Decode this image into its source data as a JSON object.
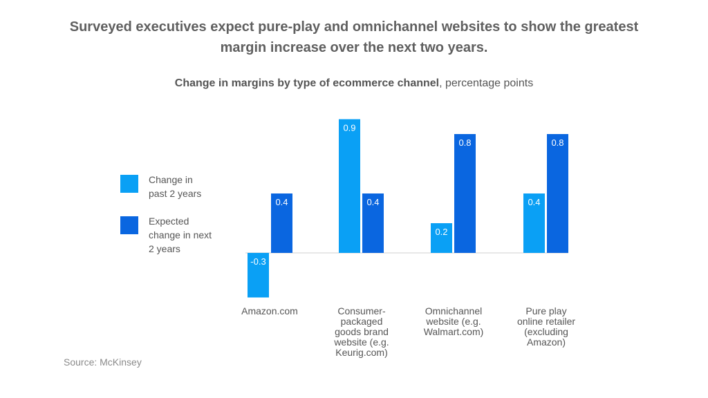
{
  "title": "Surveyed executives expect pure-play and omnichannel websites to show the greatest margin increase over the next two years.",
  "subtitle_bold": "Change in margins by type of ecommerce channel",
  "subtitle_rest": ", percentage points",
  "source": "Source: McKinsey",
  "chart_data": {
    "type": "bar",
    "title": "Change in margins by type of ecommerce channel, percentage points",
    "categories": [
      "Amazon.com",
      "Consumer-packaged goods brand website (e.g. Keurig.com)",
      "Omnichannel website (e.g. Walmart.com)",
      "Pure play online retailer (excluding Amazon)"
    ],
    "category_lines": [
      [
        "Amazon.com"
      ],
      [
        "Consumer-",
        "packaged",
        "goods brand",
        "website (e.g.",
        "Keurig.com)"
      ],
      [
        "Omnichannel",
        "website (e.g.",
        "Walmart.com)"
      ],
      [
        "Pure play",
        "online retailer",
        "(excluding",
        "Amazon)"
      ]
    ],
    "series": [
      {
        "name": "Change in past 2 years",
        "color": "#0aa0f5",
        "values": [
          -0.3,
          0.9,
          0.2,
          0.4
        ],
        "labels": [
          "-0.3",
          "0.9",
          "0.2",
          "0.4"
        ]
      },
      {
        "name": "Expected change in next 2 years",
        "color": "#0a66e0",
        "values": [
          0.4,
          0.4,
          0.8,
          0.8
        ],
        "labels": [
          "0.4",
          "0.4",
          "0.8",
          "0.8"
        ]
      }
    ],
    "legend_lines": [
      [
        "Change in",
        "past 2 years"
      ],
      [
        "Expected",
        "change in next",
        "2 years"
      ]
    ],
    "ylim": [
      -0.3,
      0.9
    ],
    "grid": false,
    "legend_position": "left"
  }
}
